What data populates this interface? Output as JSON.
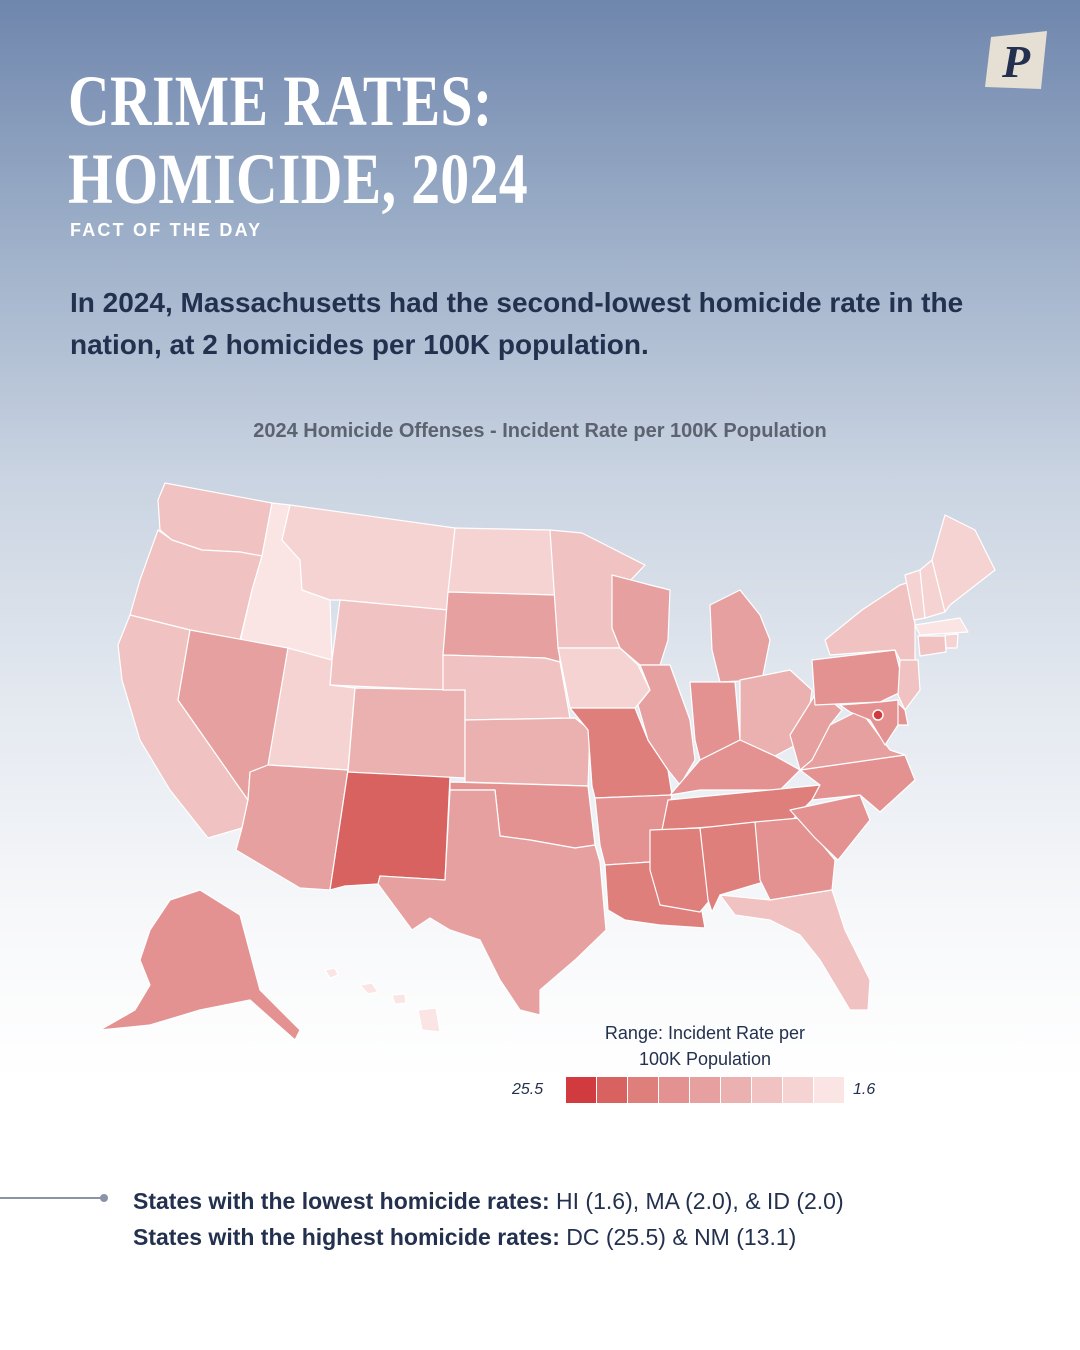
{
  "brand": {
    "logo_letter": "P",
    "logo_bg": "#e6dfd3",
    "logo_fg": "#23314f"
  },
  "header": {
    "title_line1": "CRIME RATES:",
    "title_line2": "HOMICIDE, 2024",
    "kicker": "FACT OF THE DAY"
  },
  "headline": "In 2024, Massachusetts had the second-lowest homicide rate in the nation, at 2 homicides per 100K population.",
  "map": {
    "title": "2024 Homicide Offenses - Incident Rate per 100K Population",
    "color_scale": [
      "#d13a3f",
      "#d8625f",
      "#df7f7c",
      "#e39291",
      "#e7a0a0",
      "#ebb0b0",
      "#f1c2c2",
      "#f6d3d3",
      "#fae4e4"
    ],
    "legend": {
      "title_line1": "Range: Incident Rate per",
      "title_line2": "100K Population",
      "max_label": "25.5",
      "min_label": "1.6"
    },
    "state_bins": {
      "WA": 6,
      "OR": 6,
      "CA": 6,
      "ID": 8,
      "NV": 4,
      "MT": 7,
      "WY": 6,
      "UT": 7,
      "AZ": 4,
      "NM": 1,
      "CO": 5,
      "ND": 7,
      "SD": 4,
      "NE": 6,
      "KS": 5,
      "OK": 3,
      "TX": 4,
      "MN": 6,
      "IA": 7,
      "MO": 2,
      "AR": 3,
      "LA": 2,
      "WI": 4,
      "IL": 4,
      "MI": 4,
      "IN": 3,
      "OH": 5,
      "KY": 3,
      "TN": 2,
      "MS": 2,
      "AL": 2,
      "GA": 3,
      "FL": 6,
      "SC": 3,
      "NC": 3,
      "VA": 4,
      "WV": 4,
      "PA": 3,
      "NY": 6,
      "VT": 7,
      "NH": 7,
      "ME": 7,
      "MA": 8,
      "RI": 7,
      "CT": 6,
      "NJ": 6,
      "DE": 3,
      "MD": 3,
      "DC": 0,
      "AK": 3,
      "HI": 8
    }
  },
  "facts": {
    "lowest_label": "States with the lowest homicide rates:",
    "lowest_values": "HI (1.6), MA (2.0), & ID (2.0)",
    "highest_label": "States with the highest homicide rates:",
    "highest_values": "DC (25.5) & NM (13.1)"
  }
}
